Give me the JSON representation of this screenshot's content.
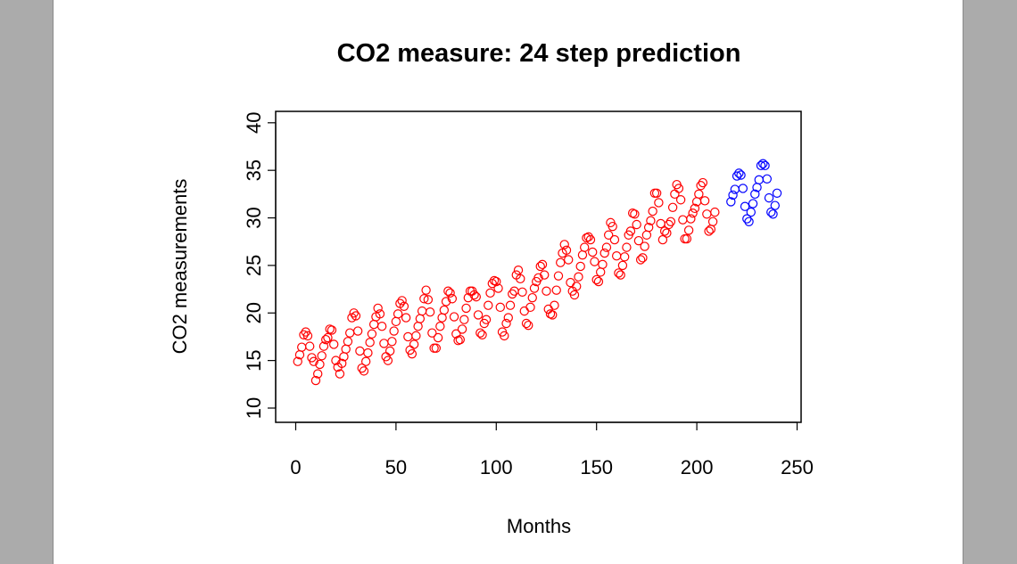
{
  "chart_data": {
    "type": "scatter",
    "title": "CO2 measure: 24 step prediction",
    "xlabel": "Months",
    "ylabel": "CO2 measurements",
    "xlim": [
      -10,
      252
    ],
    "ylim": [
      8.5,
      41.2
    ],
    "x_ticks": [
      "0",
      "50",
      "100",
      "150",
      "200",
      "250"
    ],
    "y_ticks": [
      "10",
      "15",
      "20",
      "25",
      "30",
      "35",
      "40"
    ],
    "marker": "open-circle",
    "box": true,
    "grid": false,
    "series": [
      {
        "color": "#ff0000",
        "x_start": 1,
        "values": [
          14.9,
          15.6,
          16.4,
          17.7,
          18.0,
          17.6,
          16.5,
          15.3,
          14.9,
          12.9,
          13.6,
          14.6,
          15.5,
          16.5,
          17.2,
          17.4,
          18.3,
          18.2,
          16.7,
          15.0,
          14.3,
          13.6,
          14.7,
          15.4,
          16.2,
          17.0,
          17.9,
          19.5,
          20.0,
          19.7,
          18.1,
          16.0,
          14.2,
          13.9,
          14.9,
          15.8,
          16.9,
          17.8,
          18.8,
          19.6,
          20.5,
          19.9,
          18.6,
          16.8,
          15.4,
          15.0,
          16.0,
          17.0,
          18.1,
          19.1,
          19.9,
          21.0,
          21.3,
          20.7,
          19.5,
          17.5,
          16.1,
          15.7,
          16.7,
          17.6,
          18.6,
          19.4,
          20.2,
          21.5,
          22.4,
          21.4,
          20.1,
          17.9,
          16.3,
          16.3,
          17.4,
          18.6,
          19.5,
          20.3,
          21.2,
          22.3,
          22.1,
          21.5,
          19.6,
          17.8,
          17.1,
          17.2,
          18.3,
          19.3,
          20.5,
          21.6,
          22.3,
          22.3,
          21.9,
          21.7,
          19.8,
          17.9,
          17.7,
          18.9,
          19.3,
          20.8,
          22.1,
          23.1,
          23.4,
          23.3,
          22.6,
          20.6,
          18.0,
          17.6,
          18.9,
          19.5,
          20.8,
          22.0,
          22.3,
          24.0,
          24.5,
          23.6,
          22.2,
          20.2,
          18.9,
          18.7,
          20.6,
          21.6,
          22.6,
          23.3,
          23.7,
          24.9,
          25.1,
          24.0,
          22.3,
          20.4,
          19.9,
          19.8,
          20.8,
          22.4,
          23.9,
          25.3,
          26.3,
          27.2,
          26.6,
          25.6,
          23.2,
          22.3,
          21.9,
          22.8,
          23.8,
          24.9,
          26.1,
          26.9,
          27.9,
          28.0,
          27.7,
          26.4,
          25.4,
          23.5,
          23.3,
          24.3,
          25.1,
          26.3,
          26.9,
          28.2,
          29.5,
          29.1,
          27.7,
          26.0,
          24.2,
          24.0,
          25.0,
          25.9,
          26.9,
          28.2,
          28.6,
          30.5,
          30.4,
          29.3,
          27.6,
          25.6,
          25.8,
          27.0,
          28.2,
          29.0,
          29.7,
          30.7,
          32.6,
          32.6,
          31.6,
          29.4,
          27.7,
          28.6,
          28.4,
          29.3,
          29.6,
          31.1,
          32.5,
          33.5,
          33.1,
          31.9,
          29.8,
          27.8,
          27.8,
          28.7,
          29.9,
          30.5,
          31.0,
          31.7,
          32.5,
          33.4,
          33.7,
          31.8,
          30.4,
          28.6,
          28.8,
          29.6,
          30.6
        ]
      },
      {
        "color": "#0000ff",
        "x_start": 217,
        "values": [
          31.7,
          32.4,
          33.0,
          34.4,
          34.7,
          34.5,
          33.1,
          31.2,
          29.9,
          29.6,
          30.6,
          31.5,
          32.5,
          33.2,
          34.0,
          35.5,
          35.7,
          35.5,
          34.1,
          32.1,
          30.6,
          30.4,
          31.3,
          32.6
        ]
      }
    ]
  }
}
